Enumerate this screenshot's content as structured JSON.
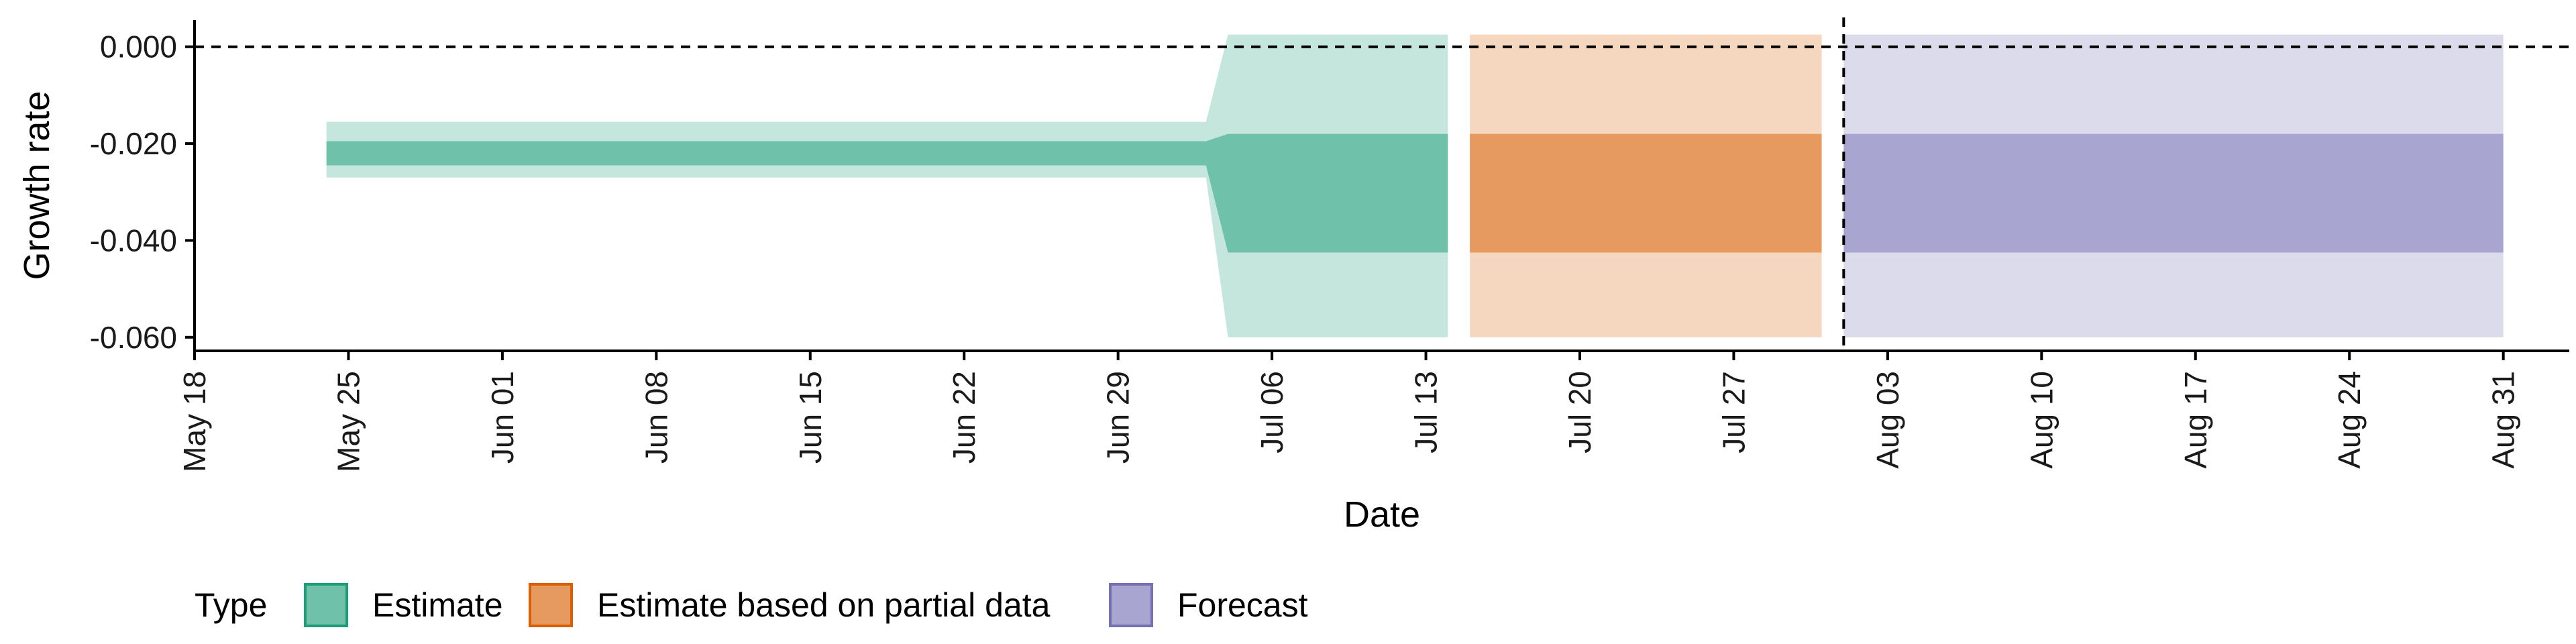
{
  "chart_data": {
    "type": "area",
    "title": "",
    "xlabel": "Date",
    "ylabel": "Growth rate",
    "x_ticks": [
      "May 18",
      "May 25",
      "Jun 01",
      "Jun 08",
      "Jun 15",
      "Jun 22",
      "Jun 29",
      "Jul 06",
      "Jul 13",
      "Jul 20",
      "Jul 27",
      "Aug 03",
      "Aug 10",
      "Aug 17",
      "Aug 24",
      "Aug 31"
    ],
    "xlim": [
      "2020-05-18",
      "2020-09-03"
    ],
    "y_ticks": [
      "0.000",
      "-0.020",
      "-0.040",
      "-0.060"
    ],
    "ylim": [
      -0.0628,
      0.0055
    ],
    "hline": {
      "y": 0.0,
      "style": "dashed"
    },
    "vline": {
      "x": "2020-08-01",
      "style": "dashed"
    },
    "grid": false,
    "legend": {
      "title": "Type",
      "position": "bottom-left",
      "entries": [
        {
          "label": "Estimate",
          "fill": "#70c1a9",
          "stroke": "#1b9e77"
        },
        {
          "label": "Estimate based on partial data",
          "fill": "#e69a5f",
          "stroke": "#d95f02"
        },
        {
          "label": "Forecast",
          "fill": "#a8a5d0",
          "stroke": "#7570b3"
        }
      ]
    },
    "series": [
      {
        "name": "Estimate",
        "fill_inner": "#70c1a9",
        "fill_outer": "#c5e6dd",
        "points": [
          {
            "x": "2020-05-24",
            "outer": [
              -0.027,
              -0.0155
            ],
            "inner": [
              -0.0245,
              -0.0195
            ]
          },
          {
            "x": "2020-07-02",
            "outer": [
              -0.027,
              -0.0155
            ],
            "inner": [
              -0.0245,
              -0.0195
            ]
          },
          {
            "x": "2020-07-03",
            "outer": [
              -0.027,
              -0.0155
            ],
            "inner": [
              -0.0245,
              -0.0195
            ]
          },
          {
            "x": "2020-07-04",
            "outer": [
              -0.06,
              0.0025
            ],
            "inner": [
              -0.0425,
              -0.018
            ]
          },
          {
            "x": "2020-07-14",
            "outer": [
              -0.06,
              0.0025
            ],
            "inner": [
              -0.0425,
              -0.018
            ]
          }
        ]
      },
      {
        "name": "Estimate based on partial data",
        "fill_inner": "#e69a5f",
        "fill_outer": "#f5d7c0",
        "points": [
          {
            "x": "2020-07-15",
            "outer": [
              -0.06,
              0.0025
            ],
            "inner": [
              -0.0425,
              -0.018
            ]
          },
          {
            "x": "2020-07-31",
            "outer": [
              -0.06,
              0.0025
            ],
            "inner": [
              -0.0425,
              -0.018
            ]
          }
        ]
      },
      {
        "name": "Forecast",
        "fill_inner": "#a8a5d0",
        "fill_outer": "#dcdbec",
        "points": [
          {
            "x": "2020-08-01",
            "outer": [
              -0.06,
              0.0025
            ],
            "inner": [
              -0.0425,
              -0.018
            ]
          },
          {
            "x": "2020-08-31",
            "outer": [
              -0.06,
              0.0025
            ],
            "inner": [
              -0.0425,
              -0.018
            ]
          }
        ]
      }
    ]
  }
}
